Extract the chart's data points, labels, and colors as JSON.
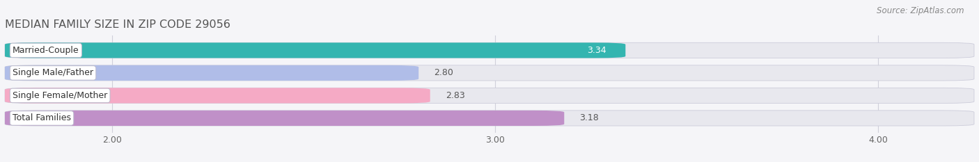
{
  "title": "MEDIAN FAMILY SIZE IN ZIP CODE 29056",
  "source": "Source: ZipAtlas.com",
  "categories": [
    "Married-Couple",
    "Single Male/Father",
    "Single Female/Mother",
    "Total Families"
  ],
  "values": [
    3.34,
    2.8,
    2.83,
    3.18
  ],
  "bar_colors": [
    "#34b5b0",
    "#b0bde8",
    "#f5aac5",
    "#c090c8"
  ],
  "value_text_colors": [
    "#ffffff",
    "#666666",
    "#666666",
    "#666666"
  ],
  "xlim_left": 1.72,
  "xlim_right": 4.25,
  "xticks": [
    2.0,
    3.0,
    4.0
  ],
  "xtick_labels": [
    "2.00",
    "3.00",
    "4.00"
  ],
  "background_color": "#f5f5f8",
  "bar_background_color": "#e8e8ee",
  "bar_height": 0.68,
  "label_fontsize": 9.0,
  "value_fontsize": 9.0,
  "title_fontsize": 11.5,
  "source_fontsize": 8.5,
  "grid_color": "#d0d0da"
}
